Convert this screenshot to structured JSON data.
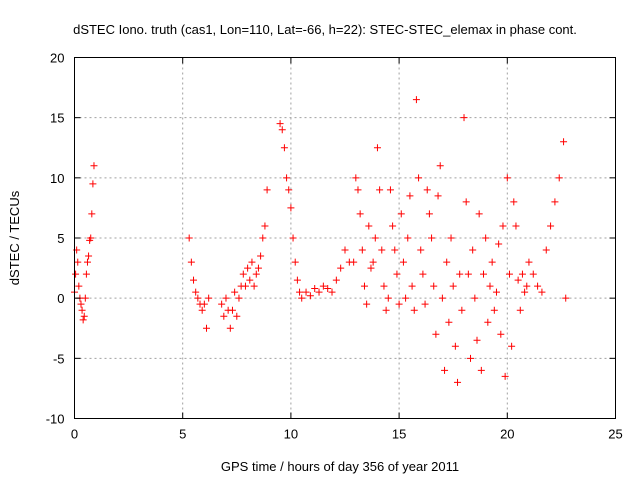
{
  "chart_data": {
    "type": "scatter",
    "title": "dSTEC Iono. truth (cas1, Lon=110, Lat=-66, h=22): STEC-STEC_elemax in phase cont.",
    "xlabel": "GPS time / hours of day 356 of year 2011",
    "ylabel": "dSTEC  / TECUs",
    "xlim": [
      0,
      25
    ],
    "ylim": [
      -10,
      20
    ],
    "xticks": [
      0,
      5,
      10,
      15,
      20,
      25
    ],
    "yticks": [
      -10,
      -5,
      0,
      5,
      10,
      15,
      20
    ],
    "xtick_labels": [
      "0",
      "5",
      "10",
      "15",
      "20",
      "25"
    ],
    "ytick_labels": [
      "-10",
      "-5",
      "0",
      "5",
      "10",
      "15",
      "20"
    ],
    "grid": true,
    "marker": "plus",
    "marker_color": "#ff0000",
    "series": [
      {
        "x": [
          0.0,
          0.05,
          0.1,
          0.15,
          0.2,
          0.25,
          0.3,
          0.35,
          0.4,
          0.45,
          0.5,
          0.55,
          0.6,
          0.65,
          0.7,
          0.75,
          0.8,
          0.85,
          0.9
        ],
        "y": [
          0.5,
          2.0,
          4.0,
          3.0,
          1.0,
          0.0,
          -0.5,
          -1.0,
          -1.8,
          -1.5,
          0.0,
          2.0,
          3.0,
          3.5,
          4.8,
          5.0,
          7.0,
          9.5,
          11.0
        ]
      },
      {
        "x": [
          5.3,
          5.4,
          5.5,
          5.6,
          5.7,
          5.8,
          5.9,
          6.0,
          6.1,
          6.2
        ],
        "y": [
          5.0,
          3.0,
          1.5,
          0.5,
          0.0,
          -0.5,
          -1.0,
          -0.5,
          -2.5,
          0.0
        ]
      },
      {
        "x": [
          6.8,
          6.9,
          7.0,
          7.1,
          7.2,
          7.3,
          7.4,
          7.5,
          7.6,
          7.7,
          7.8,
          7.9,
          8.0,
          8.1,
          8.2,
          8.3,
          8.4,
          8.5,
          8.6,
          8.7,
          8.8,
          8.9
        ],
        "y": [
          -0.5,
          -1.5,
          0.0,
          -1.0,
          -2.5,
          -1.0,
          0.5,
          -1.5,
          0.0,
          1.0,
          2.0,
          1.0,
          2.5,
          1.5,
          3.0,
          1.0,
          2.0,
          2.5,
          3.5,
          5.0,
          6.0,
          9.0
        ]
      },
      {
        "x": [
          9.5,
          9.6,
          9.7,
          9.8,
          9.9,
          10.0,
          10.1,
          10.2,
          10.3,
          10.4,
          10.5,
          10.7,
          10.9,
          11.1,
          11.3,
          11.5,
          11.7,
          11.9,
          12.1,
          12.3,
          12.5,
          12.7
        ],
        "y": [
          14.5,
          14.0,
          12.5,
          10.0,
          9.0,
          7.5,
          5.0,
          3.0,
          1.5,
          0.5,
          0.0,
          0.5,
          0.2,
          0.8,
          0.5,
          1.0,
          0.8,
          0.5,
          1.5,
          2.5,
          4.0,
          3.0
        ]
      },
      {
        "x": [
          12.9,
          13.0,
          13.1,
          13.2,
          13.3,
          13.4,
          13.5,
          13.6,
          13.7,
          13.8,
          13.9,
          14.0,
          14.1,
          14.2,
          14.3,
          14.4,
          14.5,
          14.6,
          14.7,
          14.8,
          14.9,
          15.0,
          15.1,
          15.2,
          15.3,
          15.4,
          15.5,
          15.6,
          15.7,
          15.8,
          15.9,
          16.0,
          16.1,
          16.2,
          16.3,
          16.4,
          16.5,
          16.6,
          16.7,
          16.8,
          16.9,
          17.0,
          17.1,
          17.2,
          17.3,
          17.4,
          17.5,
          17.6,
          17.7,
          17.8,
          17.9,
          18.0,
          18.1,
          18.2,
          18.3,
          18.4,
          18.5,
          18.6,
          18.7,
          18.8,
          18.9,
          19.0,
          19.1,
          19.2,
          19.3,
          19.4,
          19.5,
          19.6,
          19.7,
          19.8,
          19.9,
          20.0,
          20.1,
          20.2,
          20.3,
          20.4,
          20.5,
          20.6,
          20.7,
          20.8,
          20.9,
          21.0,
          21.2,
          21.4,
          21.6,
          21.8,
          22.0,
          22.2,
          22.4,
          22.6,
          22.7
        ],
        "y": [
          3.0,
          10.0,
          9.0,
          7.0,
          4.0,
          1.0,
          -0.5,
          6.0,
          2.5,
          3.0,
          5.0,
          12.5,
          9.0,
          4.0,
          1.0,
          -1.0,
          0.0,
          9.0,
          6.0,
          4.0,
          2.0,
          -0.5,
          7.0,
          3.0,
          0.0,
          5.0,
          8.5,
          1.0,
          -1.0,
          16.5,
          10.0,
          4.0,
          2.0,
          -0.5,
          9.0,
          7.0,
          5.0,
          1.0,
          -3.0,
          8.5,
          11.0,
          0.0,
          -6.0,
          3.0,
          -2.0,
          5.0,
          1.0,
          -4.0,
          -7.0,
          2.0,
          -1.0,
          15.0,
          8.0,
          2.0,
          -5.0,
          4.0,
          0.0,
          -3.5,
          7.0,
          -6.0,
          2.0,
          5.0,
          -2.0,
          1.0,
          3.0,
          -1.0,
          0.5,
          4.5,
          -3.0,
          6.0,
          -6.5,
          10.0,
          2.0,
          -4.0,
          8.0,
          6.0,
          1.5,
          -1.0,
          2.0,
          0.5,
          1.0,
          3.0,
          2.0,
          1.0,
          0.5,
          4.0,
          6.0,
          8.0,
          10.0,
          13.0,
          0.0
        ]
      }
    ]
  }
}
